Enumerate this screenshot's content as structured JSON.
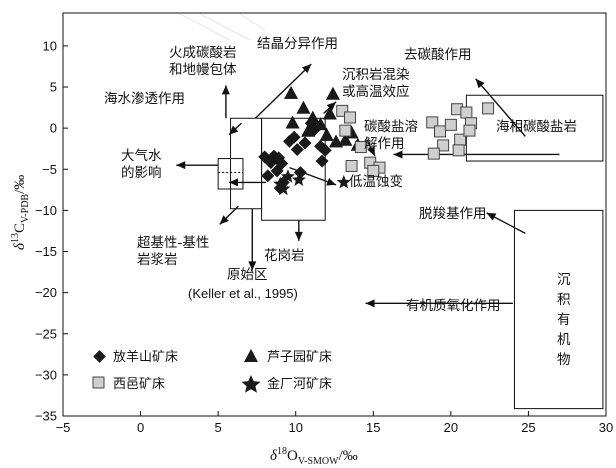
{
  "chart_data": {
    "type": "scatter",
    "xlabel": "δ18OV-SMOW/‰",
    "ylabel": "δ13CV-PDB/‰",
    "xlim": [
      -5,
      30
    ],
    "ylim": [
      -35,
      14
    ],
    "xticks": [
      -5,
      0,
      5,
      10,
      15,
      20,
      25,
      30
    ],
    "yticks": [
      10,
      5,
      0,
      -5,
      -10,
      -15,
      -20,
      -25,
      -30,
      -35
    ],
    "grid": false,
    "legend_position": "bottom-left",
    "series": [
      {
        "name": "放羊山矿床",
        "marker": "diamond",
        "color": "#1a1a1a",
        "points": [
          [
            8.0,
            -3.5
          ],
          [
            8.4,
            -4.2
          ],
          [
            8.6,
            -3.4
          ],
          [
            8.9,
            -3.6
          ],
          [
            8.2,
            -5.8
          ],
          [
            8.8,
            -5.2
          ],
          [
            9.1,
            -4.3
          ],
          [
            9.6,
            -1.6
          ],
          [
            9.9,
            -1.1
          ],
          [
            10.1,
            -2.6
          ],
          [
            10.6,
            -1.8
          ],
          [
            11.0,
            0.6
          ],
          [
            11.2,
            -0.2
          ],
          [
            11.6,
            -2.2
          ],
          [
            11.9,
            -2.7
          ],
          [
            11.7,
            -4.0
          ],
          [
            9.2,
            -6.6
          ],
          [
            9.0,
            -7.3
          ],
          [
            10.3,
            -5.4
          ]
        ]
      },
      {
        "name": "芦子园矿床",
        "marker": "triangle",
        "color": "#1a1a1a",
        "points": [
          [
            9.7,
            4.2
          ],
          [
            10.5,
            2.4
          ],
          [
            11.1,
            1.2
          ],
          [
            11.6,
            0.4
          ],
          [
            12.4,
            4.1
          ],
          [
            12.2,
            1.7
          ],
          [
            13.2,
            -1.5
          ],
          [
            13.6,
            -0.6
          ],
          [
            12.6,
            -1.7
          ],
          [
            14.0,
            -2.1
          ],
          [
            10.8,
            -0.4
          ],
          [
            9.8,
            0.6
          ],
          [
            12.0,
            -0.9
          ]
        ]
      },
      {
        "name": "西邑矿床",
        "marker": "square",
        "color": "#cfcfcf",
        "points": [
          [
            13.0,
            2.1
          ],
          [
            13.5,
            1.3
          ],
          [
            13.2,
            -0.3
          ],
          [
            14.2,
            -2.3
          ],
          [
            14.8,
            -4.2
          ],
          [
            15.4,
            -4.8
          ],
          [
            15.0,
            -5.2
          ],
          [
            13.6,
            -4.6
          ],
          [
            18.8,
            0.7
          ],
          [
            19.3,
            -0.4
          ],
          [
            20.0,
            0.4
          ],
          [
            20.4,
            2.3
          ],
          [
            20.6,
            -1.4
          ],
          [
            21.0,
            1.9
          ],
          [
            21.3,
            0.6
          ],
          [
            22.4,
            2.4
          ],
          [
            19.5,
            -2.1
          ],
          [
            18.9,
            -3.1
          ],
          [
            20.5,
            -2.7
          ],
          [
            21.2,
            -0.3
          ]
        ]
      },
      {
        "name": "金厂河矿床",
        "marker": "star",
        "color": "#1a1a1a",
        "points": [
          [
            9.2,
            -7.4
          ],
          [
            9.5,
            -5.9
          ],
          [
            10.2,
            -6.3
          ],
          [
            9.0,
            -6.8
          ],
          [
            13.1,
            -6.6
          ]
        ]
      }
    ],
    "annotations": [
      "火成碳酸岩",
      "和地幔包体",
      "结晶分异作用",
      "去碳酸作用",
      "海水渗透作用",
      "沉积岩混染",
      "或高温效应",
      "海相碳酸盐岩",
      "碳酸盐溶",
      "解作用",
      "大气水",
      "的影响",
      "低温蚀变",
      "超基性-基性",
      "岩浆岩",
      "花岗岩",
      "原始区",
      "(Keller et al., 1995)",
      "脱羧基作用",
      "沉",
      "积",
      "有",
      "机",
      "物",
      "有机质氧化作用"
    ]
  }
}
